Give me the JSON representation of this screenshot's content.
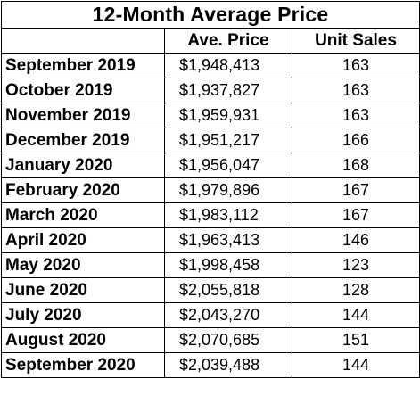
{
  "chart_data": {
    "type": "table",
    "title": "12-Month Average Price",
    "columns": [
      "",
      "Ave. Price",
      "Unit Sales"
    ],
    "rows": [
      {
        "month": "September 2019",
        "ave_price": "$1,948,413",
        "unit_sales": "163"
      },
      {
        "month": "October 2019",
        "ave_price": "$1,937,827",
        "unit_sales": "163"
      },
      {
        "month": "November 2019",
        "ave_price": "$1,959,931",
        "unit_sales": "163"
      },
      {
        "month": "December 2019",
        "ave_price": "$1,951,217",
        "unit_sales": "166"
      },
      {
        "month": "January 2020",
        "ave_price": "$1,956,047",
        "unit_sales": "168"
      },
      {
        "month": "February 2020",
        "ave_price": "$1,979,896",
        "unit_sales": "167"
      },
      {
        "month": "March 2020",
        "ave_price": "$1,983,112",
        "unit_sales": "167"
      },
      {
        "month": "April 2020",
        "ave_price": "$1,963,413",
        "unit_sales": "146"
      },
      {
        "month": "May 2020",
        "ave_price": "$1,998,458",
        "unit_sales": "123"
      },
      {
        "month": "June 2020",
        "ave_price": "$2,055,818",
        "unit_sales": "128"
      },
      {
        "month": "July 2020",
        "ave_price": "$2,043,270",
        "unit_sales": "144"
      },
      {
        "month": "August 2020",
        "ave_price": "$2,070,685",
        "unit_sales": "151"
      },
      {
        "month": "September 2020",
        "ave_price": "$2,039,488",
        "unit_sales": "144"
      }
    ]
  }
}
